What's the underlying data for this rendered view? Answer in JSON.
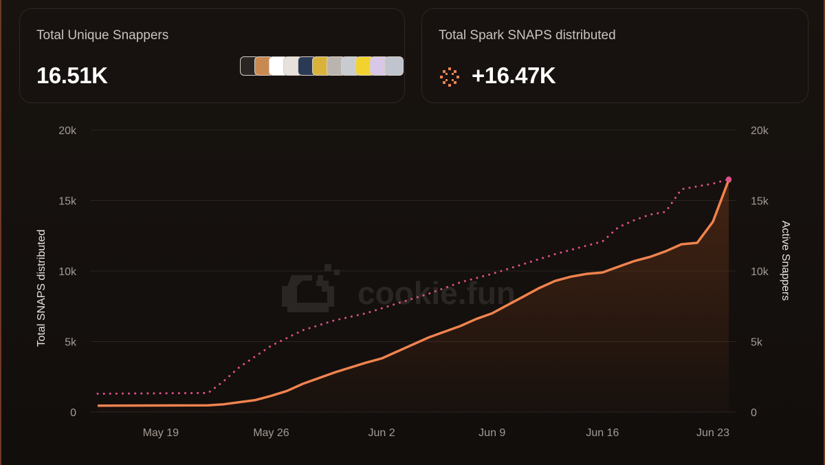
{
  "cards": {
    "unique_snappers": {
      "label": "Total Unique Snappers",
      "value": "16.51K",
      "avatar_colors": [
        "#2b2623",
        "#c98a52",
        "#ffffff",
        "#e6e1db",
        "#2a3a55",
        "#d9b23a",
        "#b9b4ae",
        "#c8ccd0",
        "#f2d22e",
        "#d8c7e6",
        "#bfc4cf"
      ]
    },
    "spark_snaps": {
      "label": "Total Spark SNAPS distributed",
      "value": "+16.47K",
      "icon": "spark-icon"
    }
  },
  "watermark": {
    "text": "cookie.fun",
    "icon": "cookie-logo-icon"
  },
  "chart_data": {
    "type": "line",
    "title": "",
    "xlabel": "",
    "ylabel": "Total SNAPS distributed",
    "y2label": "Active Snappers",
    "ylim": [
      0,
      20000
    ],
    "y2lim": [
      0,
      20000
    ],
    "yticks": [
      "0",
      "5k",
      "10k",
      "15k",
      "20k"
    ],
    "y2ticks": [
      "0",
      "5k",
      "10k",
      "15k",
      "20k"
    ],
    "x_date_ticks": [
      {
        "date": "2024-05-19",
        "label": "May 19"
      },
      {
        "date": "2024-05-26",
        "label": "May 26"
      },
      {
        "date": "2024-06-02",
        "label": "Jun 2"
      },
      {
        "date": "2024-06-09",
        "label": "Jun 9"
      },
      {
        "date": "2024-06-16",
        "label": "Jun 16"
      },
      {
        "date": "2024-06-23",
        "label": "Jun 23"
      }
    ],
    "xlim": [
      "2024-05-15",
      "2024-06-24"
    ],
    "grid": true,
    "colors": {
      "total": "#f0834f",
      "active": "#e0508c",
      "fill": "#6b3418",
      "grid": "#2b2521"
    },
    "series": [
      {
        "axis": "left",
        "style": "solid",
        "area_fill": true,
        "points": [
          [
            "2024-05-15",
            450
          ],
          [
            "2024-05-22",
            480
          ],
          [
            "2024-05-23",
            550
          ],
          [
            "2024-05-24",
            700
          ],
          [
            "2024-05-25",
            850
          ],
          [
            "2024-05-26",
            1150
          ],
          [
            "2024-05-27",
            1500
          ],
          [
            "2024-05-28",
            2000
          ],
          [
            "2024-05-29",
            2400
          ],
          [
            "2024-05-30",
            2800
          ],
          [
            "2024-05-31",
            3150
          ],
          [
            "2024-06-01",
            3500
          ],
          [
            "2024-06-02",
            3800
          ],
          [
            "2024-06-03",
            4300
          ],
          [
            "2024-06-04",
            4800
          ],
          [
            "2024-06-05",
            5300
          ],
          [
            "2024-06-06",
            5700
          ],
          [
            "2024-06-07",
            6100
          ],
          [
            "2024-06-08",
            6600
          ],
          [
            "2024-06-09",
            7000
          ],
          [
            "2024-06-10",
            7600
          ],
          [
            "2024-06-11",
            8200
          ],
          [
            "2024-06-12",
            8800
          ],
          [
            "2024-06-13",
            9300
          ],
          [
            "2024-06-14",
            9600
          ],
          [
            "2024-06-15",
            9800
          ],
          [
            "2024-06-16",
            9900
          ],
          [
            "2024-06-17",
            10300
          ],
          [
            "2024-06-18",
            10700
          ],
          [
            "2024-06-19",
            11000
          ],
          [
            "2024-06-20",
            11400
          ],
          [
            "2024-06-21",
            11900
          ],
          [
            "2024-06-22",
            12000
          ],
          [
            "2024-06-23",
            13500
          ],
          [
            "2024-06-24",
            16470
          ]
        ]
      },
      {
        "axis": "right",
        "style": "dotted",
        "area_fill": false,
        "points": [
          [
            "2024-05-15",
            1300
          ],
          [
            "2024-05-22",
            1350
          ],
          [
            "2024-05-23",
            2200
          ],
          [
            "2024-05-24",
            3200
          ],
          [
            "2024-05-26",
            4700
          ],
          [
            "2024-05-28",
            5800
          ],
          [
            "2024-05-30",
            6500
          ],
          [
            "2024-06-01",
            7000
          ],
          [
            "2024-06-03",
            7700
          ],
          [
            "2024-06-05",
            8400
          ],
          [
            "2024-06-07",
            9200
          ],
          [
            "2024-06-09",
            9800
          ],
          [
            "2024-06-11",
            10500
          ],
          [
            "2024-06-13",
            11200
          ],
          [
            "2024-06-15",
            11800
          ],
          [
            "2024-06-16",
            12100
          ],
          [
            "2024-06-17",
            13100
          ],
          [
            "2024-06-18",
            13600
          ],
          [
            "2024-06-19",
            14000
          ],
          [
            "2024-06-20",
            14200
          ],
          [
            "2024-06-21",
            15800
          ],
          [
            "2024-06-22",
            16000
          ],
          [
            "2024-06-23",
            16200
          ],
          [
            "2024-06-24",
            16510
          ]
        ]
      }
    ]
  }
}
